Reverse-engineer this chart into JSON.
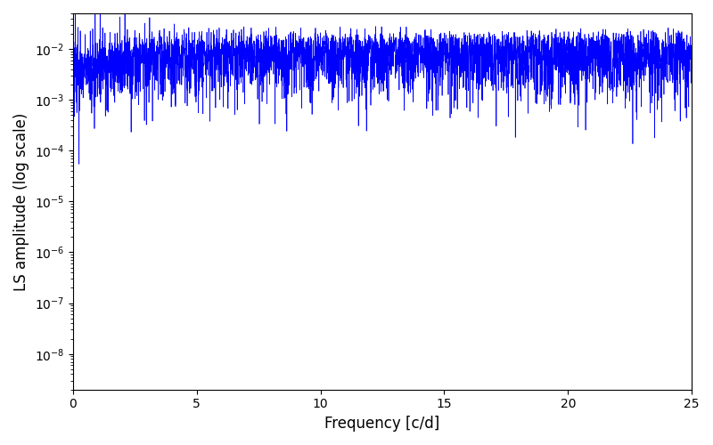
{
  "title": "",
  "xlabel": "Frequency [c/d]",
  "ylabel": "LS amplitude (log scale)",
  "line_color": "#0000ff",
  "line_width": 0.5,
  "xlim": [
    0,
    25
  ],
  "ylim_log": [
    -8.7,
    -1.3
  ],
  "yscale": "log",
  "figsize": [
    8.0,
    5.0
  ],
  "dpi": 100,
  "freq_max": 25.0,
  "n_points": 15000,
  "seed": 42
}
